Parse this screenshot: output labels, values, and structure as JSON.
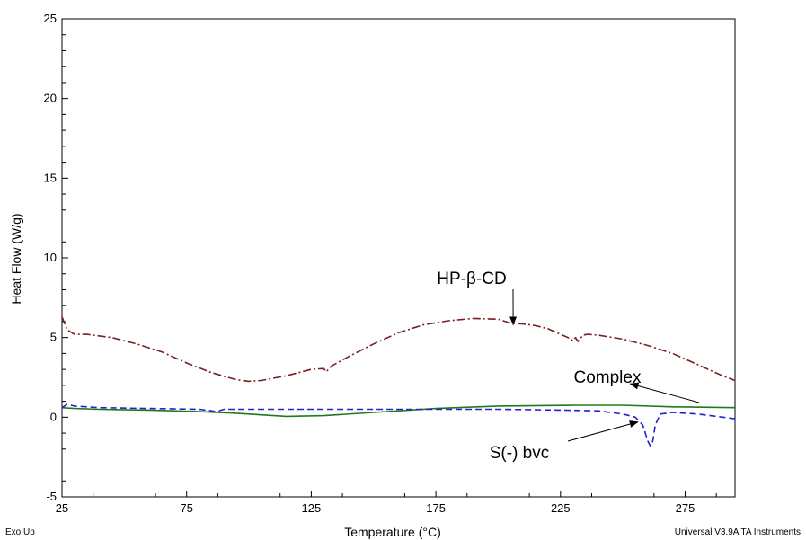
{
  "chart_data": {
    "type": "line",
    "xlabel": "Temperature (°C)",
    "ylabel": "Heat Flow (W/g)",
    "xlim": [
      25,
      295
    ],
    "ylim": [
      -5,
      25
    ],
    "x_ticks": [
      25,
      75,
      125,
      175,
      225,
      275
    ],
    "y_ticks": [
      -5,
      0,
      5,
      10,
      15,
      20,
      25
    ],
    "grid": false,
    "footer_left": "Exo Up",
    "footer_right": "Universal V3.9A TA Instruments",
    "colors": {
      "hpcd": "#7a1f1f",
      "complex": "#1e7a1e",
      "sbvc": "#2222cc"
    },
    "series": [
      {
        "name": "HP-β-CD",
        "style": "dashdot",
        "x": [
          25,
          27,
          30,
          35,
          45,
          55,
          65,
          75,
          85,
          95,
          100,
          105,
          115,
          125,
          130,
          131,
          133,
          140,
          150,
          160,
          170,
          180,
          190,
          200,
          205,
          210,
          215,
          220,
          225,
          228,
          230,
          231,
          232,
          234,
          236,
          240,
          250,
          260,
          270,
          280,
          290,
          295
        ],
        "y": [
          6.3,
          5.5,
          5.2,
          5.2,
          5.0,
          4.6,
          4.1,
          3.4,
          2.8,
          2.35,
          2.25,
          2.3,
          2.6,
          3.0,
          3.05,
          2.85,
          3.2,
          3.8,
          4.6,
          5.3,
          5.8,
          6.05,
          6.2,
          6.15,
          5.9,
          5.85,
          5.75,
          5.55,
          5.2,
          5.0,
          4.8,
          5.0,
          4.75,
          5.15,
          5.2,
          5.15,
          4.9,
          4.5,
          4.0,
          3.3,
          2.6,
          2.3
        ]
      },
      {
        "name": "Complex",
        "style": "solid",
        "x": [
          25,
          30,
          40,
          60,
          80,
          95,
          105,
          115,
          130,
          150,
          175,
          200,
          230,
          250,
          270,
          295
        ],
        "y": [
          0.6,
          0.55,
          0.5,
          0.45,
          0.35,
          0.25,
          0.15,
          0.05,
          0.1,
          0.3,
          0.55,
          0.7,
          0.75,
          0.75,
          0.65,
          0.6
        ]
      },
      {
        "name": "S(-) bvc",
        "style": "dashed",
        "x": [
          25,
          27,
          30,
          40,
          60,
          80,
          85,
          87,
          90,
          100,
          125,
          150,
          175,
          200,
          225,
          240,
          250,
          255,
          258,
          260,
          261,
          262,
          263,
          265,
          270,
          280,
          290,
          295
        ],
        "y": [
          0.6,
          0.8,
          0.7,
          0.6,
          0.55,
          0.5,
          0.4,
          0.35,
          0.5,
          0.5,
          0.5,
          0.5,
          0.5,
          0.5,
          0.45,
          0.4,
          0.2,
          0.0,
          -0.5,
          -1.5,
          -1.8,
          -1.5,
          -0.5,
          0.2,
          0.3,
          0.2,
          0.0,
          -0.1
        ]
      }
    ],
    "annotations": [
      {
        "text": "HP-β-CD",
        "series": "HP-β-CD",
        "arrow_to": [
          206,
          5.8
        ]
      },
      {
        "text": "Complex",
        "series": "Complex",
        "arrow_to": [
          253,
          2.1
        ]
      },
      {
        "text": "S(-) bvc",
        "series": "S(-) bvc",
        "arrow_to": [
          256,
          -0.3
        ]
      }
    ]
  }
}
